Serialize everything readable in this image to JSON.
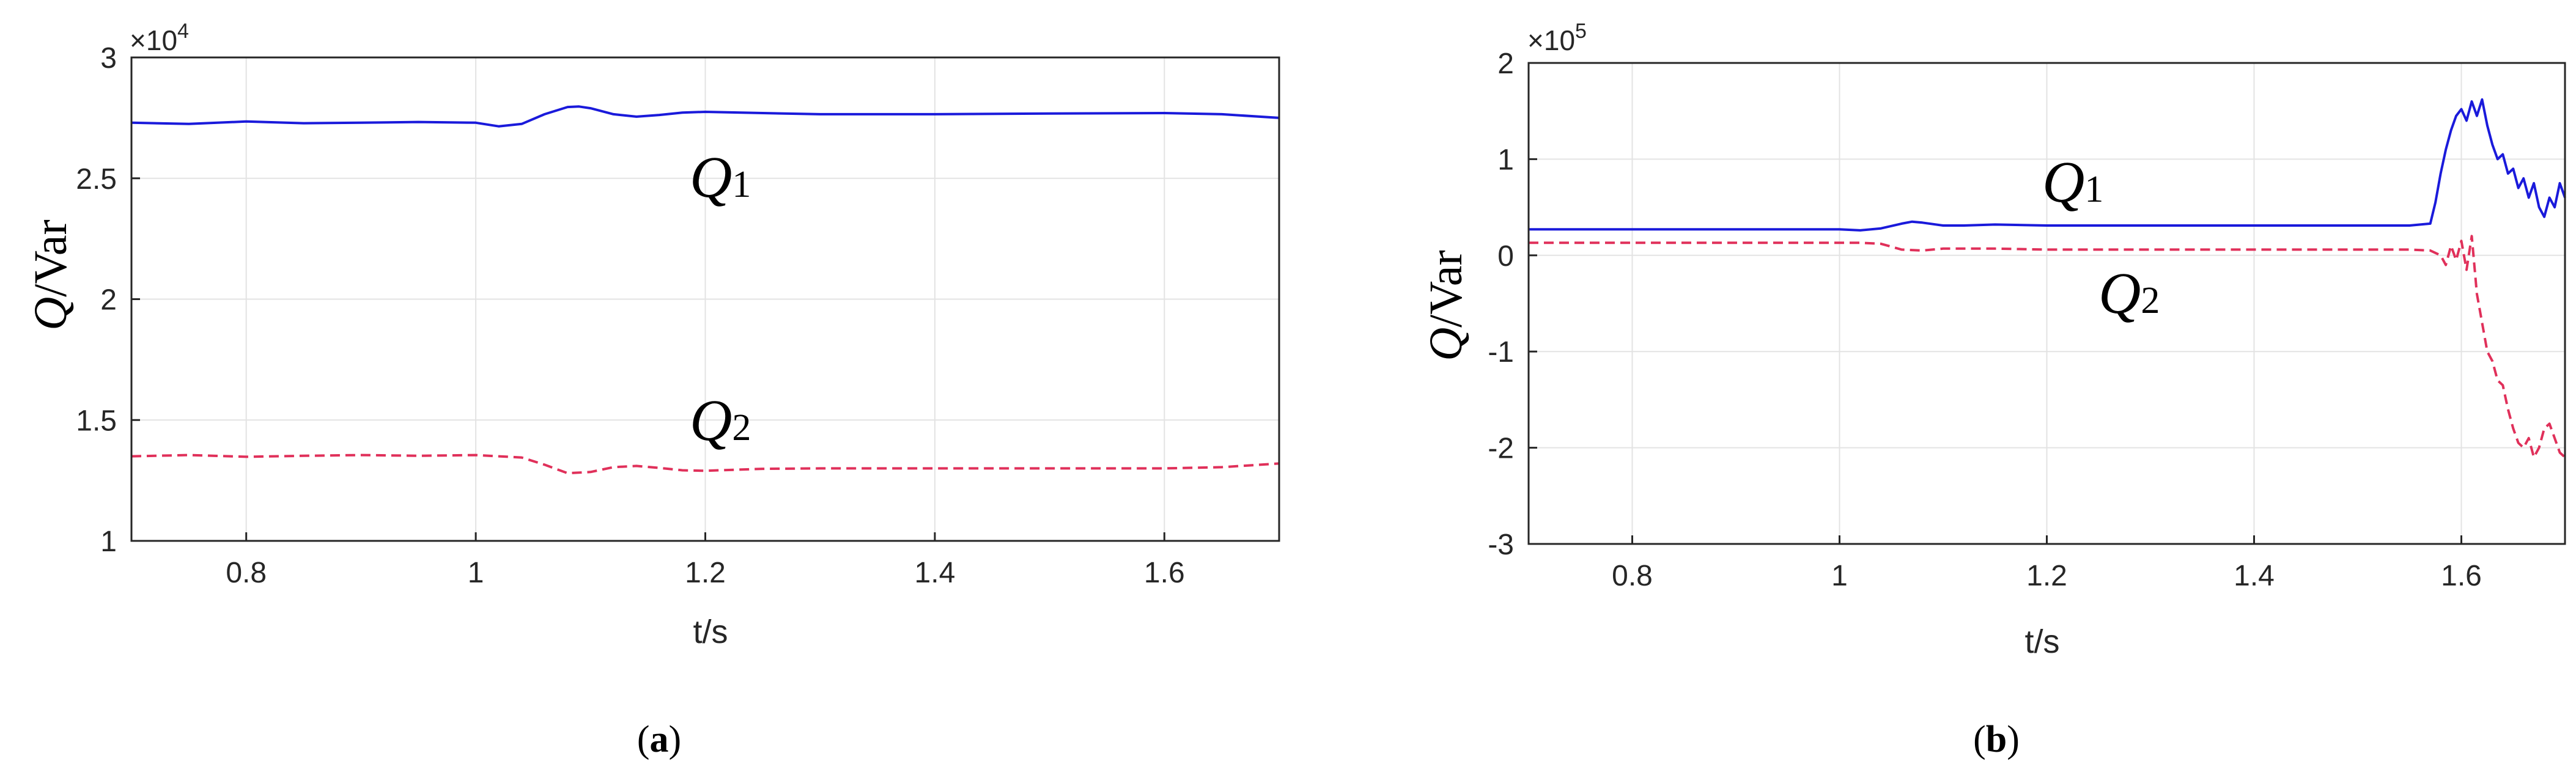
{
  "chart_data": [
    {
      "type": "line",
      "panel_label": "a",
      "xlabel": "t/s",
      "ylabel_symbol": "Q",
      "ylabel_unit": "/Var",
      "exponent_text": "×10",
      "exponent_power": "4",
      "xlim": [
        0.7,
        1.7
      ],
      "ylim": [
        1,
        3
      ],
      "x_ticks": [
        "0.8",
        "1",
        "1.2",
        "1.4",
        "1.6"
      ],
      "y_ticks": [
        "1",
        "1.5",
        "2",
        "2.5",
        "3"
      ],
      "grid": true,
      "series": [
        {
          "name": "Q1",
          "label_symbol": "Q",
          "label_sub": "1",
          "color": "#1a1adb",
          "dash": "solid",
          "x": [
            0.7,
            0.75,
            0.8,
            0.85,
            0.9,
            0.95,
            1.0,
            1.02,
            1.04,
            1.06,
            1.08,
            1.09,
            1.1,
            1.12,
            1.14,
            1.16,
            1.18,
            1.2,
            1.25,
            1.3,
            1.4,
            1.5,
            1.6,
            1.65,
            1.7
          ],
          "y": [
            2.73,
            2.725,
            2.735,
            2.728,
            2.73,
            2.733,
            2.73,
            2.715,
            2.725,
            2.765,
            2.795,
            2.797,
            2.79,
            2.765,
            2.755,
            2.762,
            2.772,
            2.775,
            2.77,
            2.765,
            2.765,
            2.768,
            2.77,
            2.765,
            2.75
          ]
        },
        {
          "name": "Q2",
          "label_symbol": "Q",
          "label_sub": "2",
          "color": "#e0305a",
          "dash": "dashed",
          "x": [
            0.7,
            0.75,
            0.8,
            0.85,
            0.9,
            0.95,
            1.0,
            1.02,
            1.04,
            1.06,
            1.08,
            1.1,
            1.12,
            1.14,
            1.16,
            1.18,
            1.2,
            1.25,
            1.3,
            1.4,
            1.5,
            1.6,
            1.65,
            1.7
          ],
          "y": [
            1.35,
            1.355,
            1.348,
            1.352,
            1.355,
            1.352,
            1.355,
            1.35,
            1.345,
            1.315,
            1.28,
            1.285,
            1.305,
            1.31,
            1.302,
            1.292,
            1.29,
            1.298,
            1.3,
            1.3,
            1.3,
            1.3,
            1.305,
            1.32
          ]
        }
      ]
    },
    {
      "type": "line",
      "panel_label": "b",
      "xlabel": "t/s",
      "ylabel_symbol": "Q",
      "ylabel_unit": "/Var",
      "exponent_text": "×10",
      "exponent_power": "5",
      "xlim": [
        0.7,
        1.7
      ],
      "ylim": [
        -3,
        2
      ],
      "x_ticks": [
        "0.8",
        "1",
        "1.2",
        "1.4",
        "1.6"
      ],
      "y_ticks": [
        "-3",
        "-2",
        "-1",
        "0",
        "1",
        "2"
      ],
      "grid": true,
      "series": [
        {
          "name": "Q1",
          "label_symbol": "Q",
          "label_sub": "1",
          "color": "#1a1adb",
          "dash": "solid",
          "x": [
            0.7,
            0.8,
            0.9,
            1.0,
            1.02,
            1.04,
            1.06,
            1.07,
            1.08,
            1.1,
            1.12,
            1.15,
            1.2,
            1.3,
            1.4,
            1.5,
            1.55,
            1.57,
            1.575,
            1.58,
            1.585,
            1.59,
            1.595,
            1.6,
            1.605,
            1.61,
            1.615,
            1.62,
            1.625,
            1.63,
            1.635,
            1.64,
            1.645,
            1.65,
            1.655,
            1.66,
            1.665,
            1.67,
            1.675,
            1.68,
            1.685,
            1.69,
            1.695,
            1.7
          ],
          "y": [
            0.27,
            0.27,
            0.27,
            0.27,
            0.26,
            0.28,
            0.33,
            0.35,
            0.34,
            0.31,
            0.31,
            0.32,
            0.31,
            0.31,
            0.31,
            0.31,
            0.31,
            0.33,
            0.55,
            0.85,
            1.1,
            1.3,
            1.45,
            1.52,
            1.4,
            1.6,
            1.45,
            1.62,
            1.35,
            1.15,
            1.0,
            1.05,
            0.85,
            0.9,
            0.7,
            0.8,
            0.6,
            0.75,
            0.5,
            0.4,
            0.6,
            0.5,
            0.75,
            0.6
          ]
        },
        {
          "name": "Q2",
          "label_symbol": "Q",
          "label_sub": "2",
          "color": "#e0305a",
          "dash": "dashed",
          "x": [
            0.7,
            0.8,
            0.9,
            1.0,
            1.02,
            1.04,
            1.06,
            1.08,
            1.1,
            1.15,
            1.2,
            1.3,
            1.4,
            1.5,
            1.55,
            1.57,
            1.58,
            1.585,
            1.59,
            1.595,
            1.6,
            1.605,
            1.61,
            1.615,
            1.62,
            1.625,
            1.63,
            1.635,
            1.64,
            1.645,
            1.65,
            1.655,
            1.66,
            1.665,
            1.67,
            1.675,
            1.68,
            1.685,
            1.69,
            1.695,
            1.7
          ],
          "y": [
            0.13,
            0.13,
            0.13,
            0.13,
            0.13,
            0.12,
            0.06,
            0.05,
            0.07,
            0.07,
            0.06,
            0.06,
            0.06,
            0.06,
            0.06,
            0.05,
            0.0,
            -0.1,
            0.1,
            -0.05,
            0.15,
            -0.15,
            0.2,
            -0.4,
            -0.7,
            -1.0,
            -1.1,
            -1.3,
            -1.35,
            -1.6,
            -1.8,
            -1.95,
            -2.0,
            -1.9,
            -2.1,
            -2.0,
            -1.8,
            -1.75,
            -1.9,
            -2.05,
            -2.1
          ]
        }
      ]
    }
  ]
}
